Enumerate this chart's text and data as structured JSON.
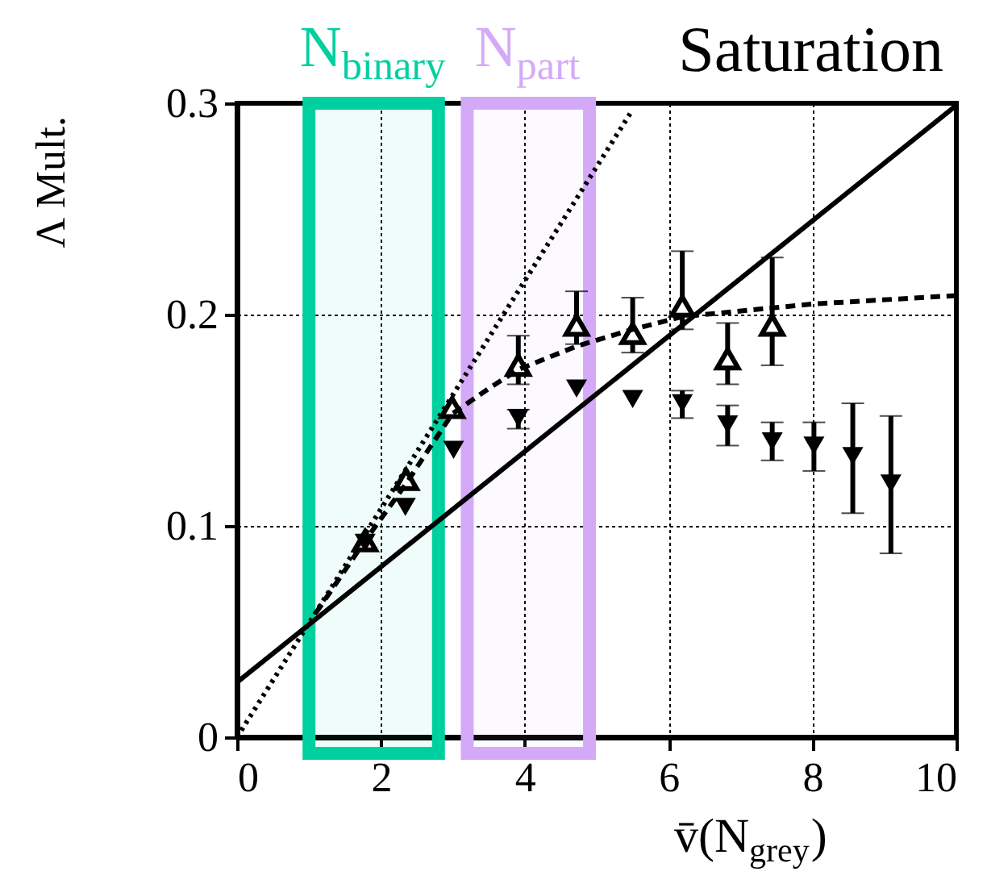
{
  "chart_data": {
    "type": "scatter",
    "xlabel": "v̄(N$_{grey}$)",
    "ylabel": "Λ Mult.",
    "xlim": [
      0,
      10
    ],
    "ylim": [
      0,
      0.3
    ],
    "xticks": [
      0,
      2,
      4,
      6,
      8,
      10
    ],
    "yticks": [
      0,
      0.1,
      0.2,
      0.3
    ],
    "grid": true,
    "annotations": [
      "Saturation"
    ],
    "bands": [
      {
        "axis": "x",
        "from": 1.0,
        "to": 2.8,
        "label": "N$_{binary}$",
        "color": "#00d0a0"
      },
      {
        "axis": "x",
        "from": 3.2,
        "to": 4.9,
        "label": "N$_{part}$",
        "color": "#d4aaf8"
      }
    ],
    "series": [
      {
        "marker": "triangle",
        "color": "#000000",
        "x": [
          1.78,
          2.35,
          2.99,
          3.91,
          4.72,
          5.5,
          6.19,
          6.82,
          7.44
        ],
        "values": [
          0.093,
          0.122,
          0.156,
          0.176,
          0.195,
          0.191,
          0.204,
          0.179,
          0.195
        ],
        "errors": [
          null,
          null,
          null,
          [
            0.167,
            0.19
          ],
          [
            0.186,
            0.211
          ],
          [
            0.182,
            0.208
          ],
          [
            0.193,
            0.23
          ],
          [
            0.167,
            0.196
          ],
          [
            0.176,
            0.227
          ]
        ]
      },
      {
        "marker": "triangle-down",
        "color": "#000000",
        "x": [
          1.78,
          2.34,
          3.01,
          3.91,
          4.72,
          5.5,
          6.19,
          6.82,
          7.44,
          8.02,
          8.56,
          9.09
        ],
        "values": [
          0.092,
          0.109,
          0.136,
          0.151,
          0.165,
          0.16,
          0.158,
          0.148,
          0.14,
          0.138,
          0.133,
          0.12
        ],
        "errors": [
          null,
          null,
          null,
          [
            0.146,
            0.155
          ],
          null,
          null,
          [
            0.151,
            0.164
          ],
          [
            0.138,
            0.157
          ],
          [
            0.131,
            0.149
          ],
          [
            0.126,
            0.149
          ],
          [
            0.106,
            0.158
          ],
          [
            0.087,
            0.152
          ]
        ]
      },
      {
        "type": "line",
        "line_style": "solid",
        "color": "#000000",
        "x": [
          0,
          10
        ],
        "values": [
          0.026,
          0.299
        ]
      },
      {
        "type": "line",
        "line_style": "dotted",
        "color": "#000000",
        "x": [
          0,
          5.5
        ],
        "values": [
          0,
          0.297
        ]
      },
      {
        "type": "line",
        "line_style": "dashed",
        "color": "#000000",
        "x": [
          1.1,
          1.78,
          2.35,
          2.99,
          3.5,
          3.91,
          4.72,
          5.5,
          6.19,
          8,
          10
        ],
        "values": [
          0.059,
          0.093,
          0.12,
          0.153,
          0.165,
          0.174,
          0.185,
          0.193,
          0.199,
          0.205,
          0.209
        ]
      }
    ]
  }
}
